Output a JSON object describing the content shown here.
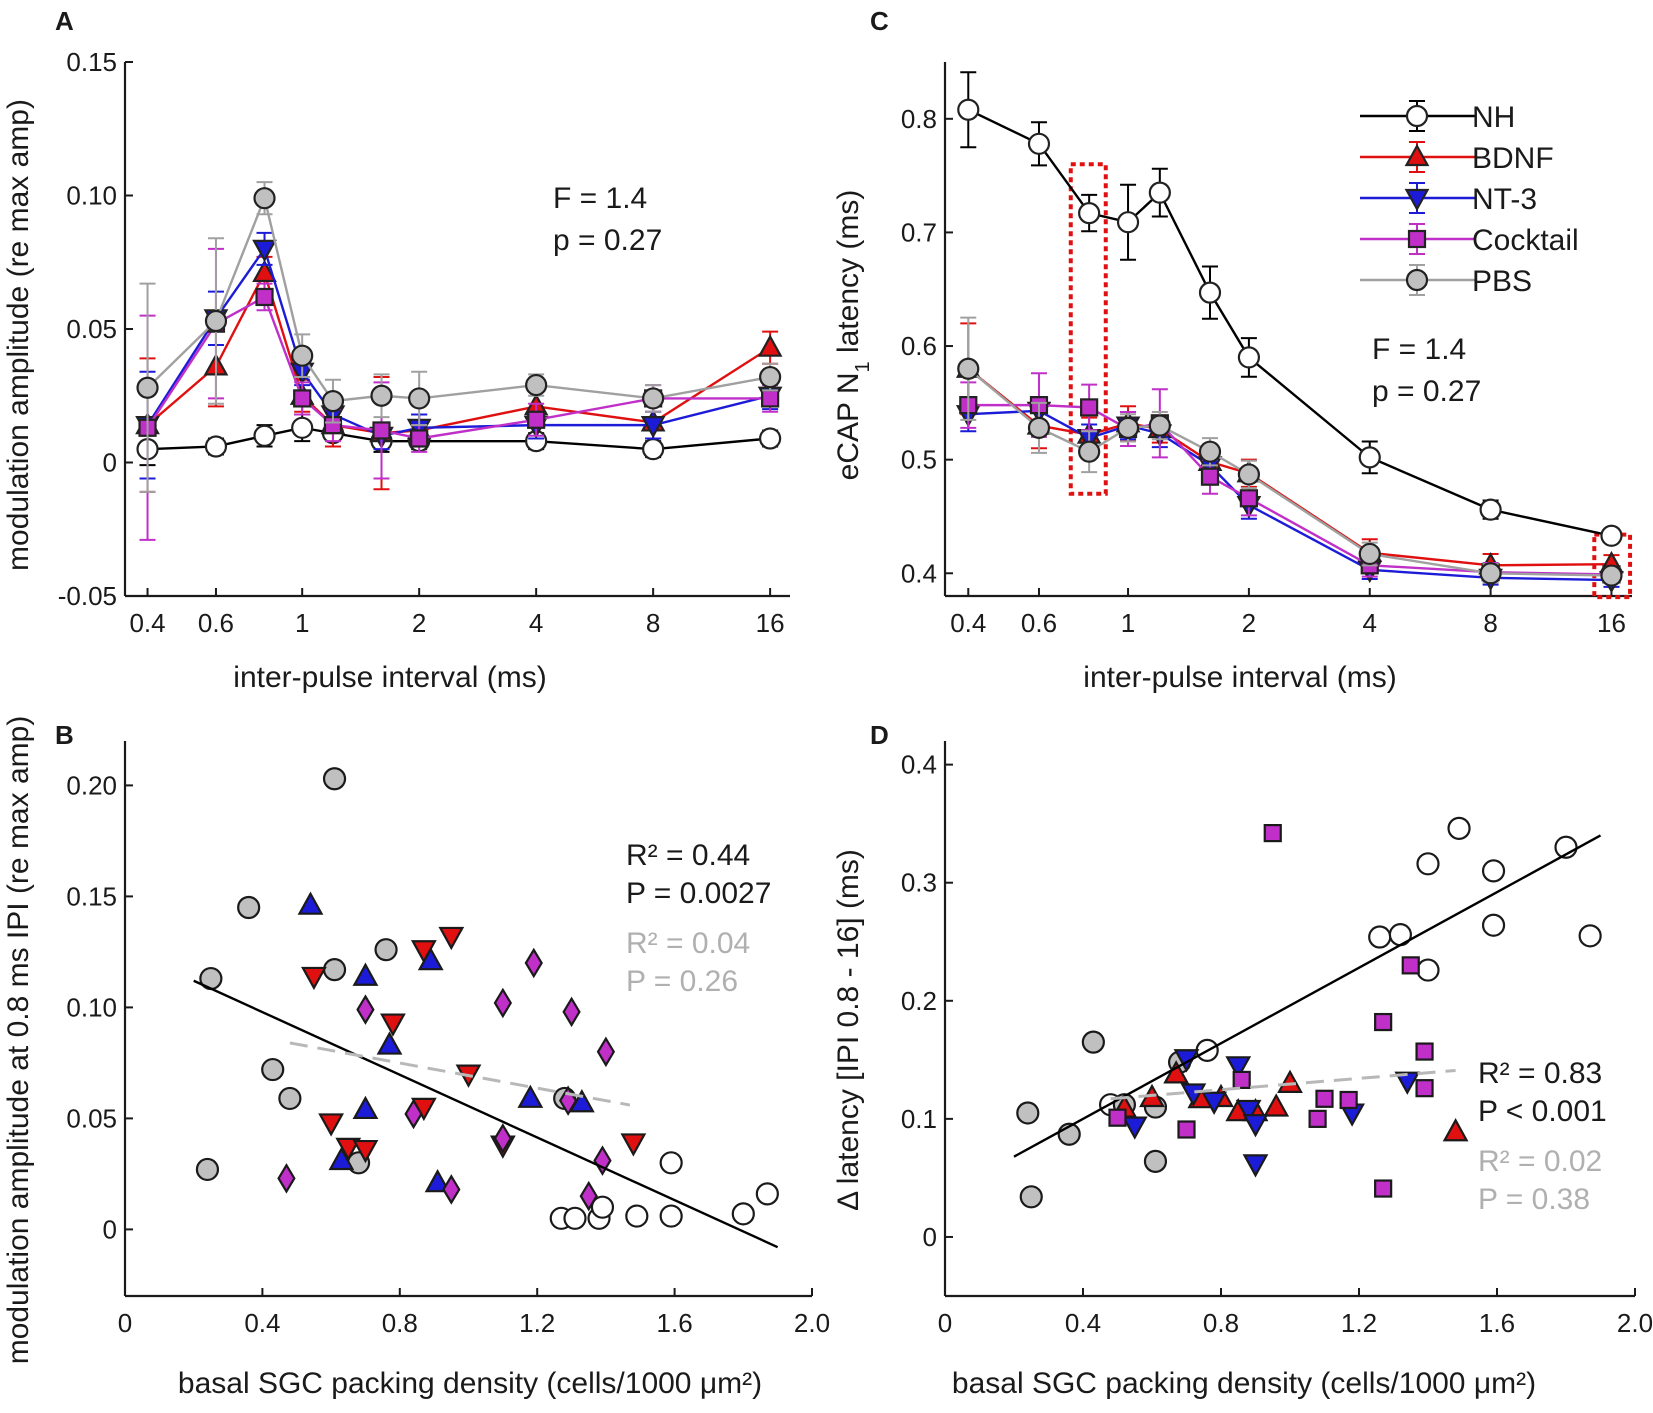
{
  "chart_data": [
    {
      "panel": "A",
      "type": "line",
      "xscale": "log",
      "xlabel": "inter-pulse interval (ms)",
      "ylabel": "modulation amplitude (re max amp)",
      "xlim": [
        0.35,
        18
      ],
      "ylim": [
        -0.05,
        0.15
      ],
      "x_ticks": [
        0.4,
        0.6,
        1,
        2,
        4,
        8,
        16
      ],
      "x_tick_labels": [
        "0.4",
        "0.6",
        "1",
        "2",
        "4",
        "8",
        "16"
      ],
      "y_ticks": [
        -0.05,
        0,
        0.05,
        0.1,
        0.15
      ],
      "y_tick_labels": [
        "-0.05",
        "0",
        "0.05",
        "0.10",
        "0.15"
      ],
      "annotations": [
        "F = 1.4",
        "p = 0.27"
      ],
      "x": [
        0.4,
        0.6,
        0.8,
        1.0,
        1.2,
        1.6,
        2,
        4,
        8,
        16
      ],
      "series": [
        {
          "name": "NH",
          "color": "#000000",
          "values": [
            0.005,
            0.006,
            0.01,
            0.013,
            0.011,
            0.008,
            0.008,
            0.008,
            0.005,
            0.009
          ],
          "err": [
            0.006,
            0.003,
            0.004,
            0.005,
            0.005,
            0.004,
            0.003,
            0.003,
            0.003,
            0.003
          ]
        },
        {
          "name": "BDNF",
          "color": "#e01010",
          "values": [
            0.014,
            0.036,
            0.071,
            0.025,
            0.014,
            0.011,
            0.012,
            0.021,
            0.015,
            0.043
          ],
          "err": [
            0.025,
            0.015,
            0.006,
            0.006,
            0.008,
            0.021,
            0.006,
            0.006,
            0.006,
            0.006
          ]
        },
        {
          "name": "NT-3",
          "color": "#1c1cd8",
          "values": [
            0.014,
            0.054,
            0.08,
            0.034,
            0.018,
            0.01,
            0.013,
            0.014,
            0.014,
            0.025
          ],
          "err": [
            0.02,
            0.01,
            0.006,
            0.005,
            0.005,
            0.005,
            0.005,
            0.005,
            0.005,
            0.005
          ]
        },
        {
          "name": "Cocktail",
          "color": "#c030c8",
          "values": [
            0.013,
            0.052,
            0.062,
            0.024,
            0.014,
            0.012,
            0.009,
            0.016,
            0.024,
            0.024
          ],
          "err": [
            0.042,
            0.028,
            0.005,
            0.006,
            0.006,
            0.018,
            0.005,
            0.006,
            0.005,
            0.005
          ]
        },
        {
          "name": "PBS",
          "color": "#a0a0a0",
          "values": [
            0.028,
            0.053,
            0.099,
            0.04,
            0.023,
            0.025,
            0.024,
            0.029,
            0.024,
            0.032
          ],
          "err": [
            0.039,
            0.031,
            0.006,
            0.008,
            0.008,
            0.008,
            0.01,
            0.004,
            0.005,
            0.005
          ]
        }
      ]
    },
    {
      "panel": "B",
      "type": "scatter",
      "xlabel": "basal SGC packing density (cells/1000 μm²)",
      "ylabel": "modulation amplitude at 0.8 ms IPI (re max amp)",
      "xlim": [
        0,
        2.0
      ],
      "ylim": [
        -0.03,
        0.22
      ],
      "x_ticks": [
        0,
        0.4,
        0.8,
        1.2,
        1.6,
        2.0
      ],
      "x_tick_labels": [
        "0",
        "0.4",
        "0.8",
        "1.2",
        "1.6",
        "2.0"
      ],
      "y_ticks": [
        0,
        0.05,
        0.1,
        0.15,
        0.2
      ],
      "y_tick_labels": [
        "0",
        "0.05",
        "0.10",
        "0.15",
        "0.20"
      ],
      "annotations": [
        {
          "text": "R² = 0.44",
          "color": "#000000"
        },
        {
          "text": "P = 0.0027",
          "color": "#000000"
        },
        {
          "text": "R² = 0.04",
          "color": "#b0b0b0"
        },
        {
          "text": "P = 0.26",
          "color": "#b0b0b0"
        }
      ],
      "fit_lines": [
        {
          "style": "solid",
          "color": "#000000",
          "x": [
            0.2,
            1.9
          ],
          "y": [
            0.112,
            -0.008
          ]
        },
        {
          "style": "dashed",
          "color": "#b8b8b8",
          "x": [
            0.48,
            1.47
          ],
          "y": [
            0.084,
            0.056
          ]
        }
      ],
      "series": [
        {
          "name": "NH",
          "marker": "circle",
          "fill": "#ffffff",
          "points": [
            [
              1.27,
              0.005
            ],
            [
              1.31,
              0.005
            ],
            [
              1.38,
              0.005
            ],
            [
              1.39,
              0.01
            ],
            [
              1.49,
              0.006
            ],
            [
              1.59,
              0.006
            ],
            [
              1.59,
              0.03
            ],
            [
              1.8,
              0.007
            ],
            [
              1.87,
              0.016
            ]
          ]
        },
        {
          "name": "PBS",
          "marker": "circle",
          "fill": "#c0c0c0",
          "points": [
            [
              0.24,
              0.027
            ],
            [
              0.25,
              0.113
            ],
            [
              0.36,
              0.145
            ],
            [
              0.43,
              0.072
            ],
            [
              0.48,
              0.059
            ],
            [
              0.61,
              0.203
            ],
            [
              0.61,
              0.117
            ],
            [
              0.68,
              0.03
            ],
            [
              0.76,
              0.126
            ],
            [
              1.28,
              0.059
            ]
          ]
        },
        {
          "name": "BDNF",
          "marker": "triangle-down",
          "fill": "#e01010",
          "points": [
            [
              0.55,
              0.114
            ],
            [
              0.6,
              0.048
            ],
            [
              0.65,
              0.037
            ],
            [
              0.7,
              0.036
            ],
            [
              0.78,
              0.093
            ],
            [
              0.87,
              0.126
            ],
            [
              0.87,
              0.055
            ],
            [
              0.95,
              0.132
            ],
            [
              1.0,
              0.07
            ],
            [
              1.1,
              0.038
            ],
            [
              1.48,
              0.039
            ]
          ]
        },
        {
          "name": "NT-3",
          "marker": "triangle-up",
          "fill": "#1c1cd8",
          "points": [
            [
              0.54,
              0.146
            ],
            [
              0.63,
              0.031
            ],
            [
              0.7,
              0.114
            ],
            [
              0.7,
              0.054
            ],
            [
              0.77,
              0.083
            ],
            [
              0.89,
              0.121
            ],
            [
              0.91,
              0.021
            ],
            [
              1.18,
              0.059
            ],
            [
              1.33,
              0.057
            ]
          ]
        },
        {
          "name": "Cocktail",
          "marker": "diamond",
          "fill": "#c030c8",
          "points": [
            [
              0.47,
              0.023
            ],
            [
              0.7,
              0.099
            ],
            [
              0.84,
              0.052
            ],
            [
              0.95,
              0.018
            ],
            [
              1.1,
              0.041
            ],
            [
              1.1,
              0.102
            ],
            [
              1.19,
              0.12
            ],
            [
              1.3,
              0.098
            ],
            [
              1.29,
              0.058
            ],
            [
              1.4,
              0.08
            ],
            [
              1.39,
              0.031
            ],
            [
              1.35,
              0.015
            ]
          ]
        }
      ]
    },
    {
      "panel": "C",
      "type": "line",
      "xscale": "log",
      "xlabel": "inter-pulse interval (ms)",
      "ylabel": "eCAP N",
      "ylabel_subscript": "1",
      "ylabel_suffix": " latency (ms)",
      "xlim": [
        0.35,
        18
      ],
      "ylim": [
        0.38,
        0.85
      ],
      "x_ticks": [
        0.4,
        0.6,
        1,
        2,
        4,
        8,
        16
      ],
      "x_tick_labels": [
        "0.4",
        "0.6",
        "1",
        "2",
        "4",
        "8",
        "16"
      ],
      "y_ticks": [
        0.4,
        0.5,
        0.6,
        0.7,
        0.8
      ],
      "y_tick_labels": [
        "0.4",
        "0.5",
        "0.6",
        "0.7",
        "0.8"
      ],
      "annotations": [
        "F = 1.4",
        "p = 0.27"
      ],
      "highlight_boxes": [
        {
          "x_from": 0.72,
          "x_to": 0.88,
          "y_from": 0.47,
          "y_to": 0.76
        },
        {
          "x_from": 14.5,
          "x_to": 17.8,
          "y_from": 0.379,
          "y_to": 0.434
        }
      ],
      "x": [
        0.4,
        0.6,
        0.8,
        1.0,
        1.2,
        1.6,
        2,
        4,
        8,
        16
      ],
      "legend": [
        "NH",
        "BDNF",
        "NT-3",
        "Cocktail",
        "PBS"
      ],
      "series": [
        {
          "name": "NH",
          "color": "#000000",
          "marker": "circle",
          "fill": "#ffffff",
          "values": [
            0.808,
            0.778,
            0.717,
            0.709,
            0.735,
            0.647,
            0.59,
            0.502,
            0.456,
            0.433
          ],
          "err": [
            0.033,
            0.019,
            0.016,
            0.033,
            0.021,
            0.023,
            0.017,
            0.014,
            0.008,
            0.005
          ]
        },
        {
          "name": "BDNF",
          "color": "#e01010",
          "marker": "triangle-up",
          "fill": "#e01010",
          "values": [
            0.58,
            0.53,
            0.522,
            0.532,
            0.527,
            0.498,
            0.488,
            0.418,
            0.407,
            0.408
          ],
          "err": [
            0.04,
            0.02,
            0.015,
            0.015,
            0.012,
            0.015,
            0.012,
            0.012,
            0.01,
            0.008
          ]
        },
        {
          "name": "NT-3",
          "color": "#1c1cd8",
          "marker": "triangle-down",
          "fill": "#1c1cd8",
          "values": [
            0.54,
            0.543,
            0.519,
            0.53,
            0.523,
            0.495,
            0.46,
            0.403,
            0.396,
            0.394
          ],
          "err": [
            0.015,
            0.012,
            0.012,
            0.012,
            0.012,
            0.012,
            0.012,
            0.008,
            0.006,
            0.006
          ]
        },
        {
          "name": "Cocktail",
          "color": "#c030c8",
          "marker": "square",
          "fill": "#c030c8",
          "values": [
            0.548,
            0.548,
            0.546,
            0.527,
            0.532,
            0.485,
            0.466,
            0.407,
            0.401,
            0.399
          ],
          "err": [
            0.02,
            0.028,
            0.02,
            0.015,
            0.03,
            0.015,
            0.015,
            0.01,
            0.008,
            0.006
          ]
        },
        {
          "name": "PBS",
          "color": "#a0a0a0",
          "marker": "circle",
          "fill": "#c0c0c0",
          "values": [
            0.58,
            0.528,
            0.507,
            0.528,
            0.53,
            0.507,
            0.487,
            0.417,
            0.4,
            0.398
          ],
          "err": [
            0.045,
            0.022,
            0.018,
            0.012,
            0.012,
            0.012,
            0.012,
            0.01,
            0.008,
            0.006
          ]
        }
      ]
    },
    {
      "panel": "D",
      "type": "scatter",
      "xlabel": "basal SGC packing density (cells/1000 μm²)",
      "ylabel": "Δ latency [IPI 0.8 - 16] (ms)",
      "xlim": [
        0,
        2.0
      ],
      "ylim": [
        -0.05,
        0.42
      ],
      "x_ticks": [
        0,
        0.4,
        0.8,
        1.2,
        1.6,
        2.0
      ],
      "x_tick_labels": [
        "0",
        "0.4",
        "0.8",
        "1.2",
        "1.6",
        "2.0"
      ],
      "y_ticks": [
        0,
        0.1,
        0.2,
        0.3,
        0.4
      ],
      "y_tick_labels": [
        "0",
        "0.1",
        "0.2",
        "0.3",
        "0.4"
      ],
      "annotations": [
        {
          "text": "R² = 0.83",
          "color": "#000000"
        },
        {
          "text": "P < 0.001",
          "color": "#000000"
        },
        {
          "text": "R² = 0.02",
          "color": "#b0b0b0"
        },
        {
          "text": "P = 0.38",
          "color": "#b0b0b0"
        }
      ],
      "fit_lines": [
        {
          "style": "solid",
          "color": "#000000",
          "x": [
            0.2,
            1.9
          ],
          "y": [
            0.068,
            0.34
          ]
        },
        {
          "style": "dashed",
          "color": "#b8b8b8",
          "x": [
            0.48,
            1.48
          ],
          "y": [
            0.117,
            0.141
          ]
        }
      ],
      "series": [
        {
          "name": "NH",
          "marker": "circle",
          "fill": "#ffffff",
          "points": [
            [
              0.48,
              0.112
            ],
            [
              0.76,
              0.158
            ],
            [
              1.26,
              0.254
            ],
            [
              1.32,
              0.256
            ],
            [
              1.4,
              0.226
            ],
            [
              1.4,
              0.316
            ],
            [
              1.49,
              0.346
            ],
            [
              1.59,
              0.31
            ],
            [
              1.59,
              0.264
            ],
            [
              1.8,
              0.33
            ],
            [
              1.87,
              0.255
            ]
          ]
        },
        {
          "name": "PBS",
          "marker": "circle",
          "fill": "#c0c0c0",
          "points": [
            [
              0.24,
              0.105
            ],
            [
              0.25,
              0.034
            ],
            [
              0.36,
              0.087
            ],
            [
              0.43,
              0.165
            ],
            [
              0.52,
              0.112
            ],
            [
              0.61,
              0.064
            ],
            [
              0.68,
              0.148
            ],
            [
              0.61,
              0.11
            ]
          ]
        },
        {
          "name": "BDNF",
          "marker": "triangle-up",
          "fill": "#e01010",
          "points": [
            [
              0.52,
              0.109
            ],
            [
              0.6,
              0.118
            ],
            [
              0.67,
              0.138
            ],
            [
              0.74,
              0.117
            ],
            [
              0.8,
              0.118
            ],
            [
              0.85,
              0.106
            ],
            [
              0.9,
              0.106
            ],
            [
              0.96,
              0.11
            ],
            [
              1.0,
              0.13
            ],
            [
              1.48,
              0.089
            ]
          ]
        },
        {
          "name": "NT-3",
          "marker": "triangle-down",
          "fill": "#1c1cd8",
          "points": [
            [
              0.55,
              0.094
            ],
            [
              0.7,
              0.151
            ],
            [
              0.72,
              0.122
            ],
            [
              0.78,
              0.115
            ],
            [
              0.85,
              0.145
            ],
            [
              0.88,
              0.108
            ],
            [
              0.9,
              0.062
            ],
            [
              0.9,
              0.096
            ],
            [
              1.18,
              0.105
            ],
            [
              1.34,
              0.132
            ]
          ]
        },
        {
          "name": "Cocktail",
          "marker": "square",
          "fill": "#c030c8",
          "points": [
            [
              0.5,
              0.101
            ],
            [
              0.7,
              0.091
            ],
            [
              0.86,
              0.133
            ],
            [
              0.95,
              0.342
            ],
            [
              1.08,
              0.1
            ],
            [
              1.1,
              0.117
            ],
            [
              1.17,
              0.116
            ],
            [
              1.27,
              0.182
            ],
            [
              1.27,
              0.041
            ],
            [
              1.35,
              0.23
            ],
            [
              1.39,
              0.157
            ],
            [
              1.39,
              0.126
            ]
          ]
        }
      ]
    }
  ],
  "panel_labels": [
    "A",
    "B",
    "C",
    "D"
  ]
}
